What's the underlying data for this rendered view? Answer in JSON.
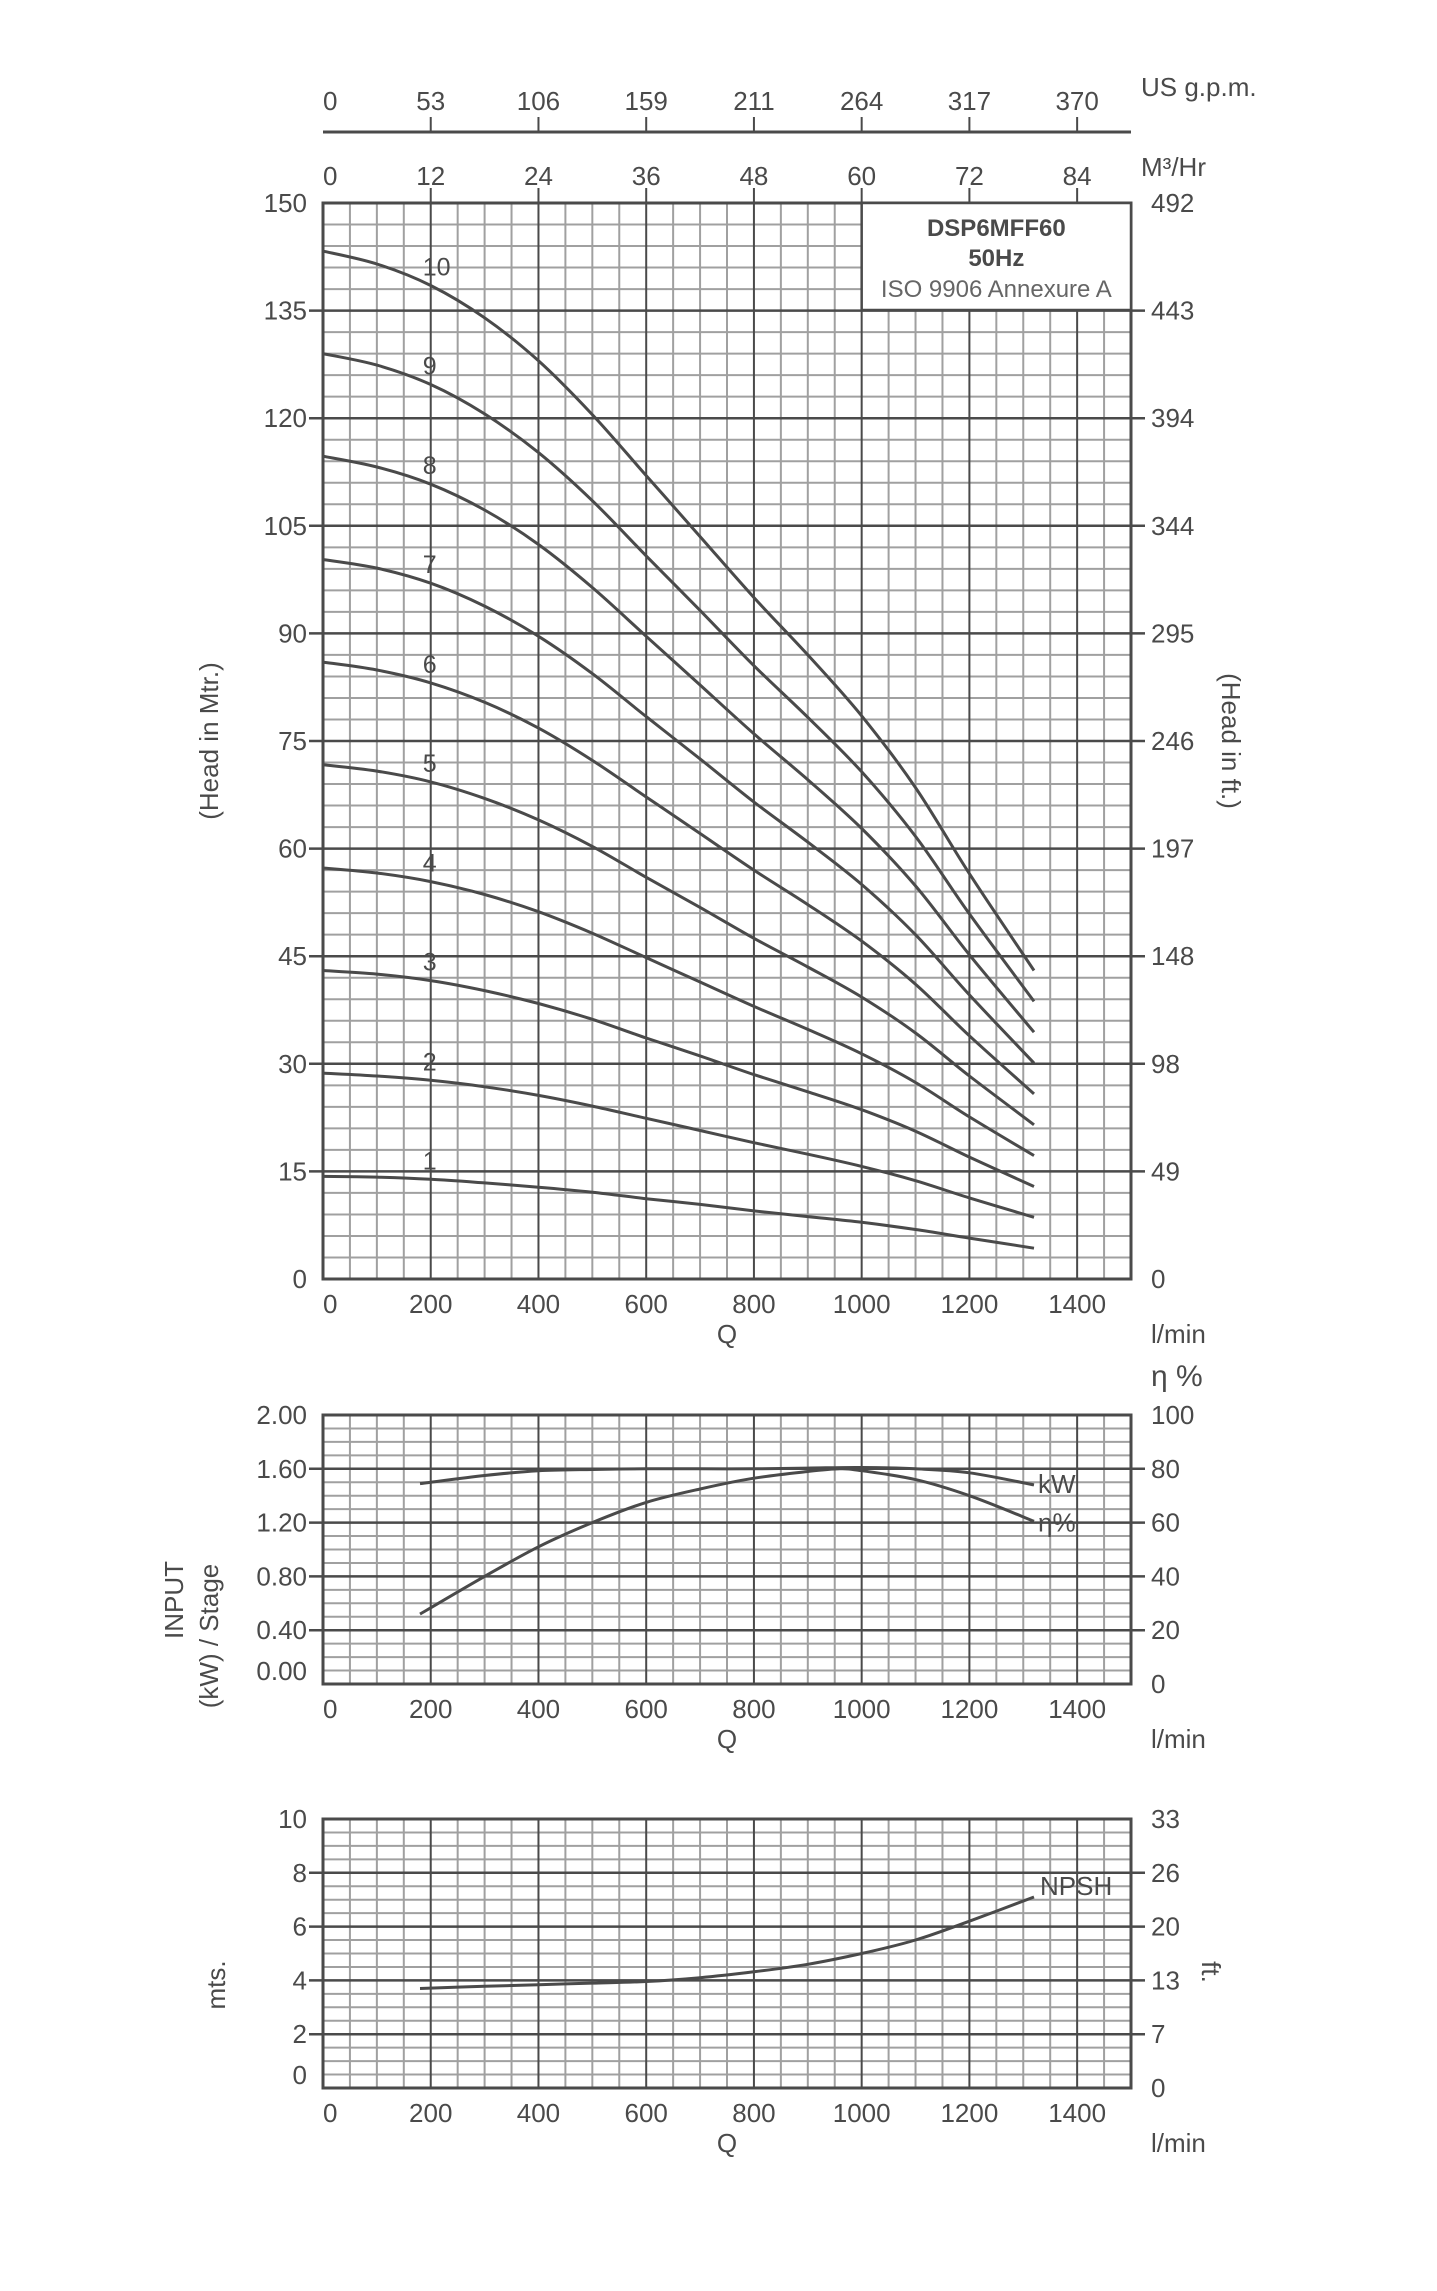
{
  "chart_data": [
    {
      "type": "line",
      "title": "DSP6MFF60",
      "subtitle": "50Hz",
      "annotation": "ISO 9906 Annexure A",
      "xlabel": "Q",
      "x_unit": "l/min",
      "ylabel": "(Head in Mtr.)",
      "ylabel_right": "(Head in ft.)",
      "xlim": [
        0,
        1500
      ],
      "ylim": [
        0,
        150
      ],
      "x_ticks": [
        0,
        200,
        400,
        600,
        800,
        1000,
        1200,
        1400
      ],
      "y_ticks": [
        0,
        15,
        30,
        45,
        60,
        75,
        90,
        105,
        120,
        135,
        150
      ],
      "y_ticks_right": [
        "0",
        "49",
        "98",
        "148",
        "197",
        "246",
        "295",
        "344",
        "394",
        "443",
        "492"
      ],
      "top_axis_m3hr": {
        "label": "M³/Hr",
        "ticks": [
          "0",
          "12",
          "24",
          "36",
          "48",
          "60",
          "72",
          "84"
        ]
      },
      "top_axis_usgpm": {
        "label": "US g.p.m.",
        "ticks": [
          "0",
          "53",
          "106",
          "159",
          "211",
          "264",
          "317",
          "370"
        ]
      },
      "grid": true,
      "x": [
        0,
        100,
        200,
        300,
        400,
        500,
        600,
        700,
        800,
        900,
        1000,
        1100,
        1200,
        1320
      ],
      "series": [
        {
          "name": "1",
          "values": [
            14.3,
            14.2,
            13.9,
            13.4,
            12.8,
            12.1,
            11.2,
            10.4,
            9.5,
            8.7,
            7.9,
            6.9,
            5.7,
            4.3
          ]
        },
        {
          "name": "2",
          "values": [
            28.7,
            28.3,
            27.7,
            26.8,
            25.6,
            24.1,
            22.4,
            20.7,
            19.0,
            17.4,
            15.7,
            13.7,
            11.3,
            8.6
          ]
        },
        {
          "name": "3",
          "values": [
            43.0,
            42.5,
            41.6,
            40.2,
            38.4,
            36.2,
            33.6,
            31.1,
            28.5,
            26.1,
            23.6,
            20.6,
            17.0,
            12.9
          ]
        },
        {
          "name": "4",
          "values": [
            57.3,
            56.6,
            55.4,
            53.6,
            51.2,
            48.2,
            44.8,
            41.4,
            38.0,
            34.8,
            31.4,
            27.4,
            22.6,
            17.2
          ]
        },
        {
          "name": "5",
          "values": [
            71.7,
            70.8,
            69.3,
            67.0,
            64.0,
            60.3,
            56.0,
            51.8,
            47.5,
            43.5,
            39.3,
            34.3,
            28.3,
            21.5
          ]
        },
        {
          "name": "6",
          "values": [
            86.0,
            84.9,
            83.1,
            80.4,
            76.8,
            72.3,
            67.2,
            62.1,
            57.0,
            52.2,
            47.1,
            41.1,
            33.9,
            25.8
          ]
        },
        {
          "name": "7",
          "values": [
            100.3,
            99.1,
            97.0,
            93.8,
            89.6,
            84.4,
            78.4,
            72.5,
            66.5,
            60.9,
            55.0,
            48.0,
            39.6,
            30.1
          ]
        },
        {
          "name": "8",
          "values": [
            114.7,
            113.2,
            110.8,
            107.2,
            102.4,
            96.4,
            89.6,
            82.8,
            76.0,
            69.6,
            62.8,
            54.8,
            45.2,
            34.4
          ]
        },
        {
          "name": "9",
          "values": [
            129.0,
            127.4,
            124.7,
            120.6,
            115.2,
            108.5,
            100.8,
            93.2,
            85.5,
            78.3,
            70.7,
            61.7,
            50.9,
            38.7
          ]
        },
        {
          "name": "10",
          "values": [
            143.3,
            141.5,
            138.5,
            134.0,
            128.0,
            120.5,
            112.0,
            103.5,
            95.0,
            87.0,
            78.5,
            68.5,
            56.5,
            43.0
          ]
        }
      ]
    },
    {
      "type": "line",
      "xlabel": "Q",
      "x_unit": "l/min",
      "ylabel": "INPUT (kW) / Stage",
      "ylabel_right": "η %",
      "xlim": [
        0,
        1500
      ],
      "ylim": [
        0,
        2.0
      ],
      "ylim_right": [
        0,
        100
      ],
      "x_ticks": [
        0,
        200,
        400,
        600,
        800,
        1000,
        1200,
        1400
      ],
      "y_ticks": [
        "0.00",
        "0.40",
        "0.80",
        "1.20",
        "1.60",
        "2.00"
      ],
      "y_ticks_right": [
        "0",
        "20",
        "40",
        "60",
        "80",
        "100"
      ],
      "grid": true,
      "series": [
        {
          "name": "kW",
          "axis": "left",
          "x": [
            180,
            300,
            400,
            500,
            600,
            700,
            800,
            900,
            1000,
            1100,
            1200,
            1320
          ],
          "values": [
            1.49,
            1.55,
            1.585,
            1.595,
            1.6,
            1.6,
            1.6,
            1.605,
            1.61,
            1.6,
            1.57,
            1.48
          ]
        },
        {
          "name": "η%",
          "axis": "right",
          "x": [
            180,
            300,
            400,
            500,
            600,
            700,
            800,
            900,
            960,
            1000,
            1100,
            1200,
            1320
          ],
          "values": [
            26,
            40,
            51,
            60,
            67.5,
            72.5,
            76.5,
            79,
            80,
            79.3,
            76,
            70,
            60.5
          ]
        }
      ]
    },
    {
      "type": "line",
      "xlabel": "Q",
      "x_unit": "l/min",
      "ylabel": "mts.",
      "ylabel_right": "ft.",
      "xlim": [
        0,
        1500
      ],
      "ylim": [
        0,
        10
      ],
      "x_ticks": [
        0,
        200,
        400,
        600,
        800,
        1000,
        1200,
        1400
      ],
      "y_ticks": [
        "0",
        "2",
        "4",
        "6",
        "8",
        "10"
      ],
      "y_ticks_right": [
        "0",
        "7",
        "13",
        "20",
        "26",
        "33"
      ],
      "grid": true,
      "series": [
        {
          "name": "NPSH",
          "x": [
            180,
            300,
            400,
            500,
            600,
            700,
            800,
            900,
            1000,
            1100,
            1200,
            1320
          ],
          "values": [
            3.7,
            3.78,
            3.84,
            3.9,
            3.96,
            4.1,
            4.32,
            4.6,
            5.0,
            5.5,
            6.2,
            7.1
          ]
        }
      ]
    }
  ],
  "colors": {
    "curve": "#4a4a4a",
    "major_grid": "#4a4a4a",
    "minor_grid": "#a0a0a0",
    "text": "#4a4a4a"
  },
  "labels": {
    "q": "Q",
    "lmin": "l/min",
    "eta_header": "η %",
    "kw_tag": "kW",
    "eta_tag": "η%",
    "npsh_tag": "NPSH",
    "input_line1": "INPUT",
    "input_line2": "(kW) / Stage"
  }
}
